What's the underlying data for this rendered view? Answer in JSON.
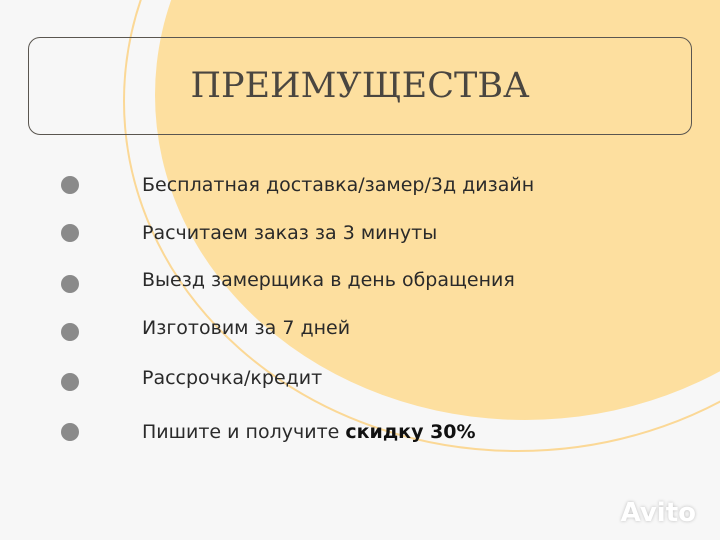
{
  "title": "ПРЕИМУЩЕСТВА",
  "items": [
    {
      "text": "Бесплатная доставка/замер/3д дизайн"
    },
    {
      "text": "Расчитаем заказ за 3 минуты"
    },
    {
      "text": "Выезд замерщика в день обращения"
    },
    {
      "text": "Изготовим за 7 дней"
    },
    {
      "text": "Рассрочка/кредит"
    },
    {
      "text": "Пишите и получите ",
      "highlight": "скидку 30%"
    }
  ],
  "watermark": "Avito",
  "colors": {
    "accent": "#fddf9f",
    "bullet": "#8a8a8a",
    "title": "#4a4640"
  }
}
